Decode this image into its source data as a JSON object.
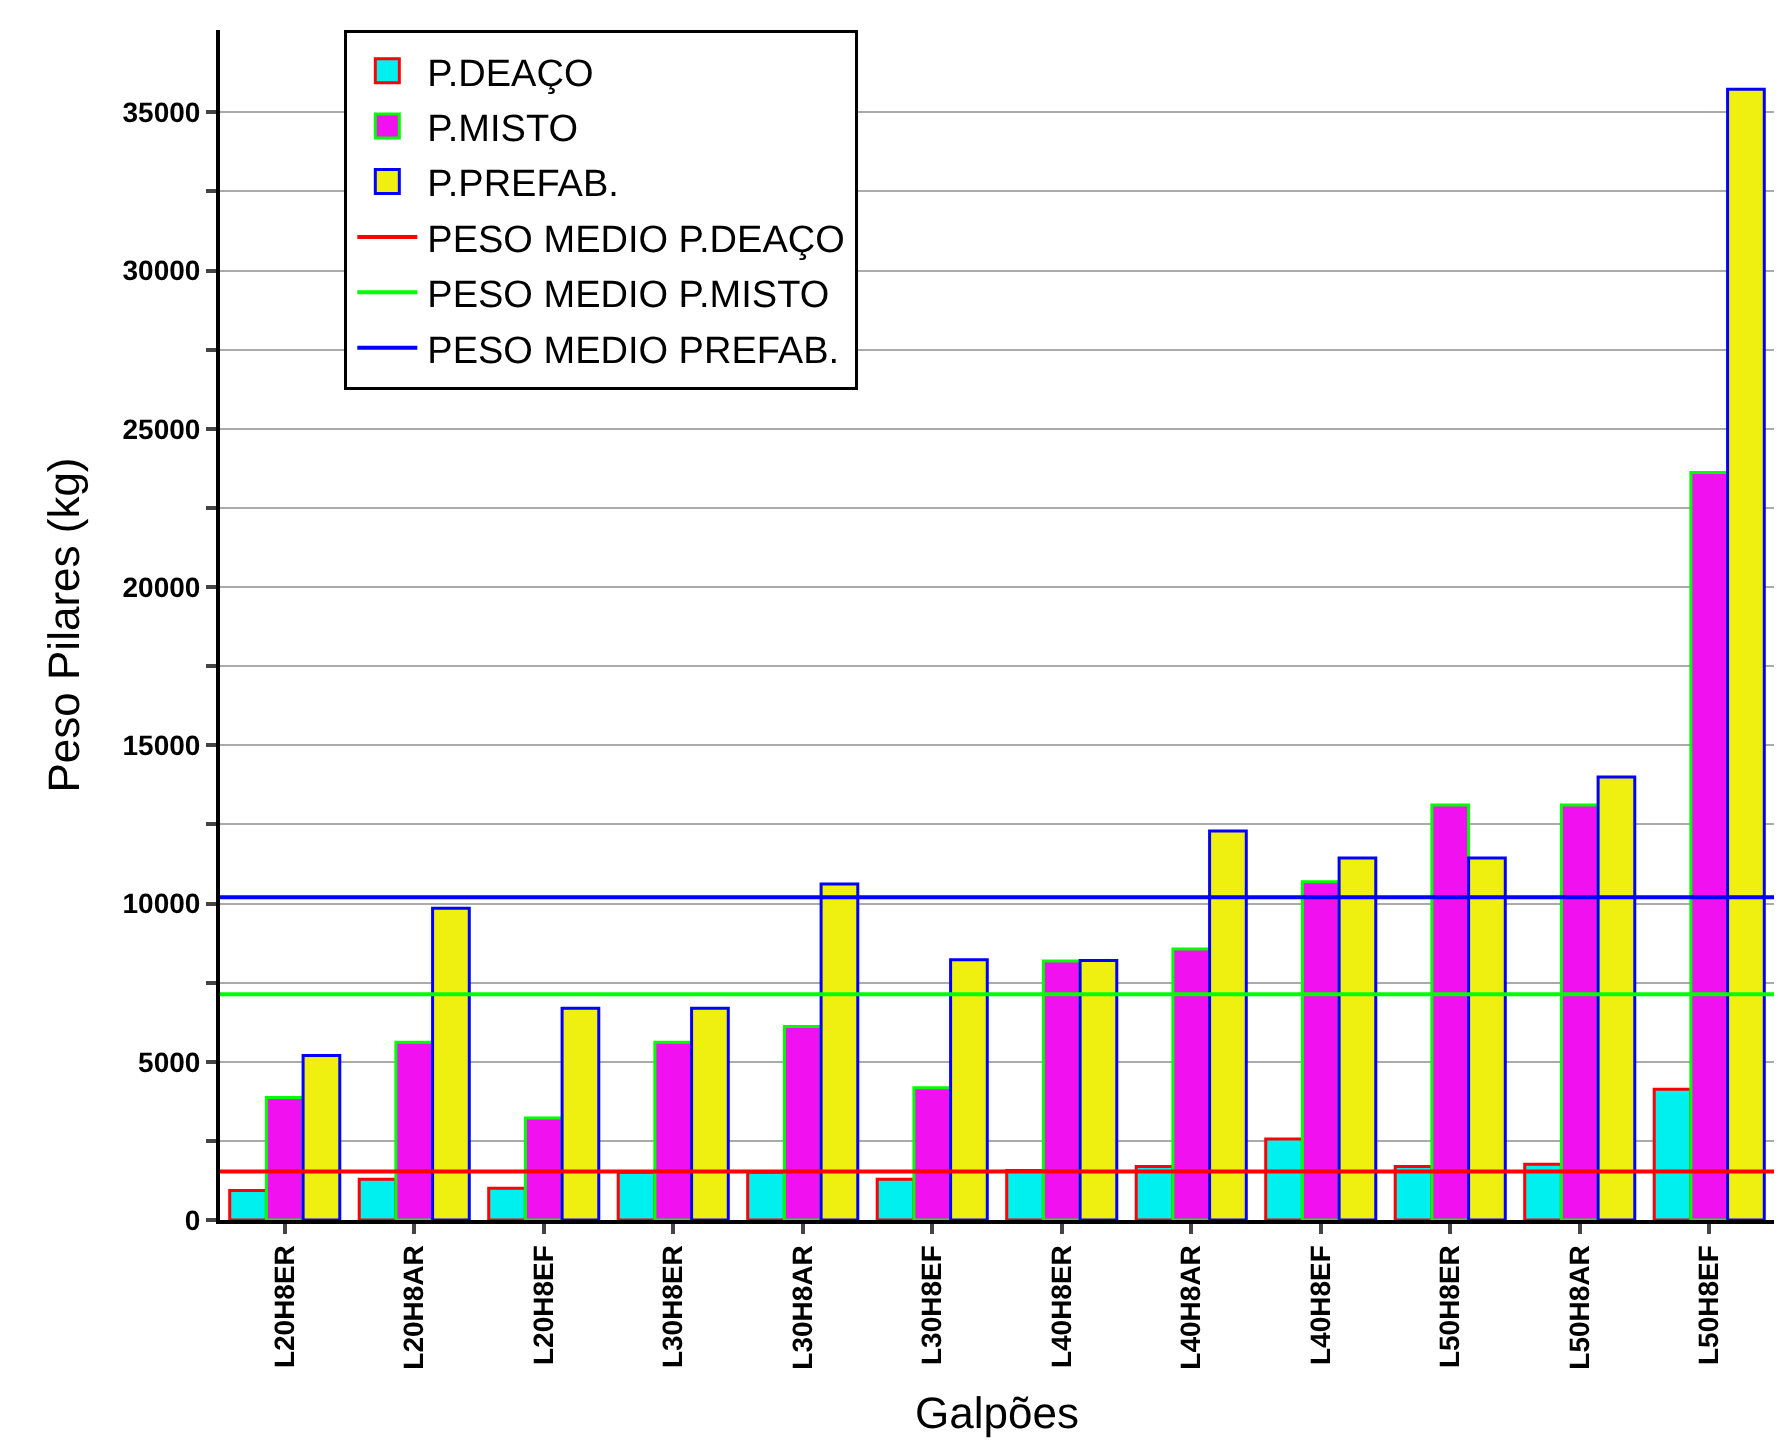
{
  "chart_data": {
    "type": "bar",
    "xlabel": "Galpões",
    "ylabel": "Peso Pilares (kg)",
    "categories": [
      "L20H8ER",
      "L20H8AR",
      "L20H8EF",
      "L30H8ER",
      "L30H8AR",
      "L30H8EF",
      "L40H8ER",
      "L40H8AR",
      "L40H8EF",
      "L50H8ER",
      "L50H8AR",
      "L50H8EF"
    ],
    "series": [
      {
        "name": "P.DEAÇO",
        "color": "#00f0f0",
        "values": [
          930,
          1290,
          1000,
          1510,
          1510,
          1290,
          1560,
          1690,
          2560,
          1690,
          1760,
          4130
        ]
      },
      {
        "name": "P.MISTO",
        "color": "#f010f0",
        "values": [
          3870,
          5620,
          3220,
          5620,
          6110,
          4180,
          8180,
          8560,
          10690,
          13110,
          13110,
          23620
        ]
      },
      {
        "name": "P.PREFAB.",
        "color": "#f0f010",
        "values": [
          5200,
          9850,
          6690,
          6690,
          10620,
          8220,
          8200,
          12290,
          11440,
          11440,
          14000,
          35730
        ]
      }
    ],
    "ref_lines": [
      {
        "axis": "y",
        "value": 1530,
        "label": "PESO MEDIO P.DEAÇO",
        "color": "#ff0000"
      },
      {
        "axis": "y",
        "value": 7130,
        "label": "PESO MEDIO P.MISTO",
        "color": "#00ff00"
      },
      {
        "axis": "y",
        "value": 10200,
        "label": "PESO MEDIO PREFAB.",
        "color": "#0000ff"
      }
    ],
    "ylim": [
      0,
      37600
    ],
    "yticks": [
      0,
      {
        "value": 2500,
        "label": null
      },
      5000,
      {
        "value": 7500,
        "label": null
      },
      10000,
      {
        "value": 12500,
        "label": null
      },
      15000,
      {
        "value": 17500,
        "label": null
      },
      20000,
      {
        "value": 22500,
        "label": null
      },
      25000,
      {
        "value": 27500,
        "label": null
      },
      30000,
      {
        "value": 32500,
        "label": null
      },
      35000
    ],
    "grid": true,
    "legend": "top left"
  }
}
